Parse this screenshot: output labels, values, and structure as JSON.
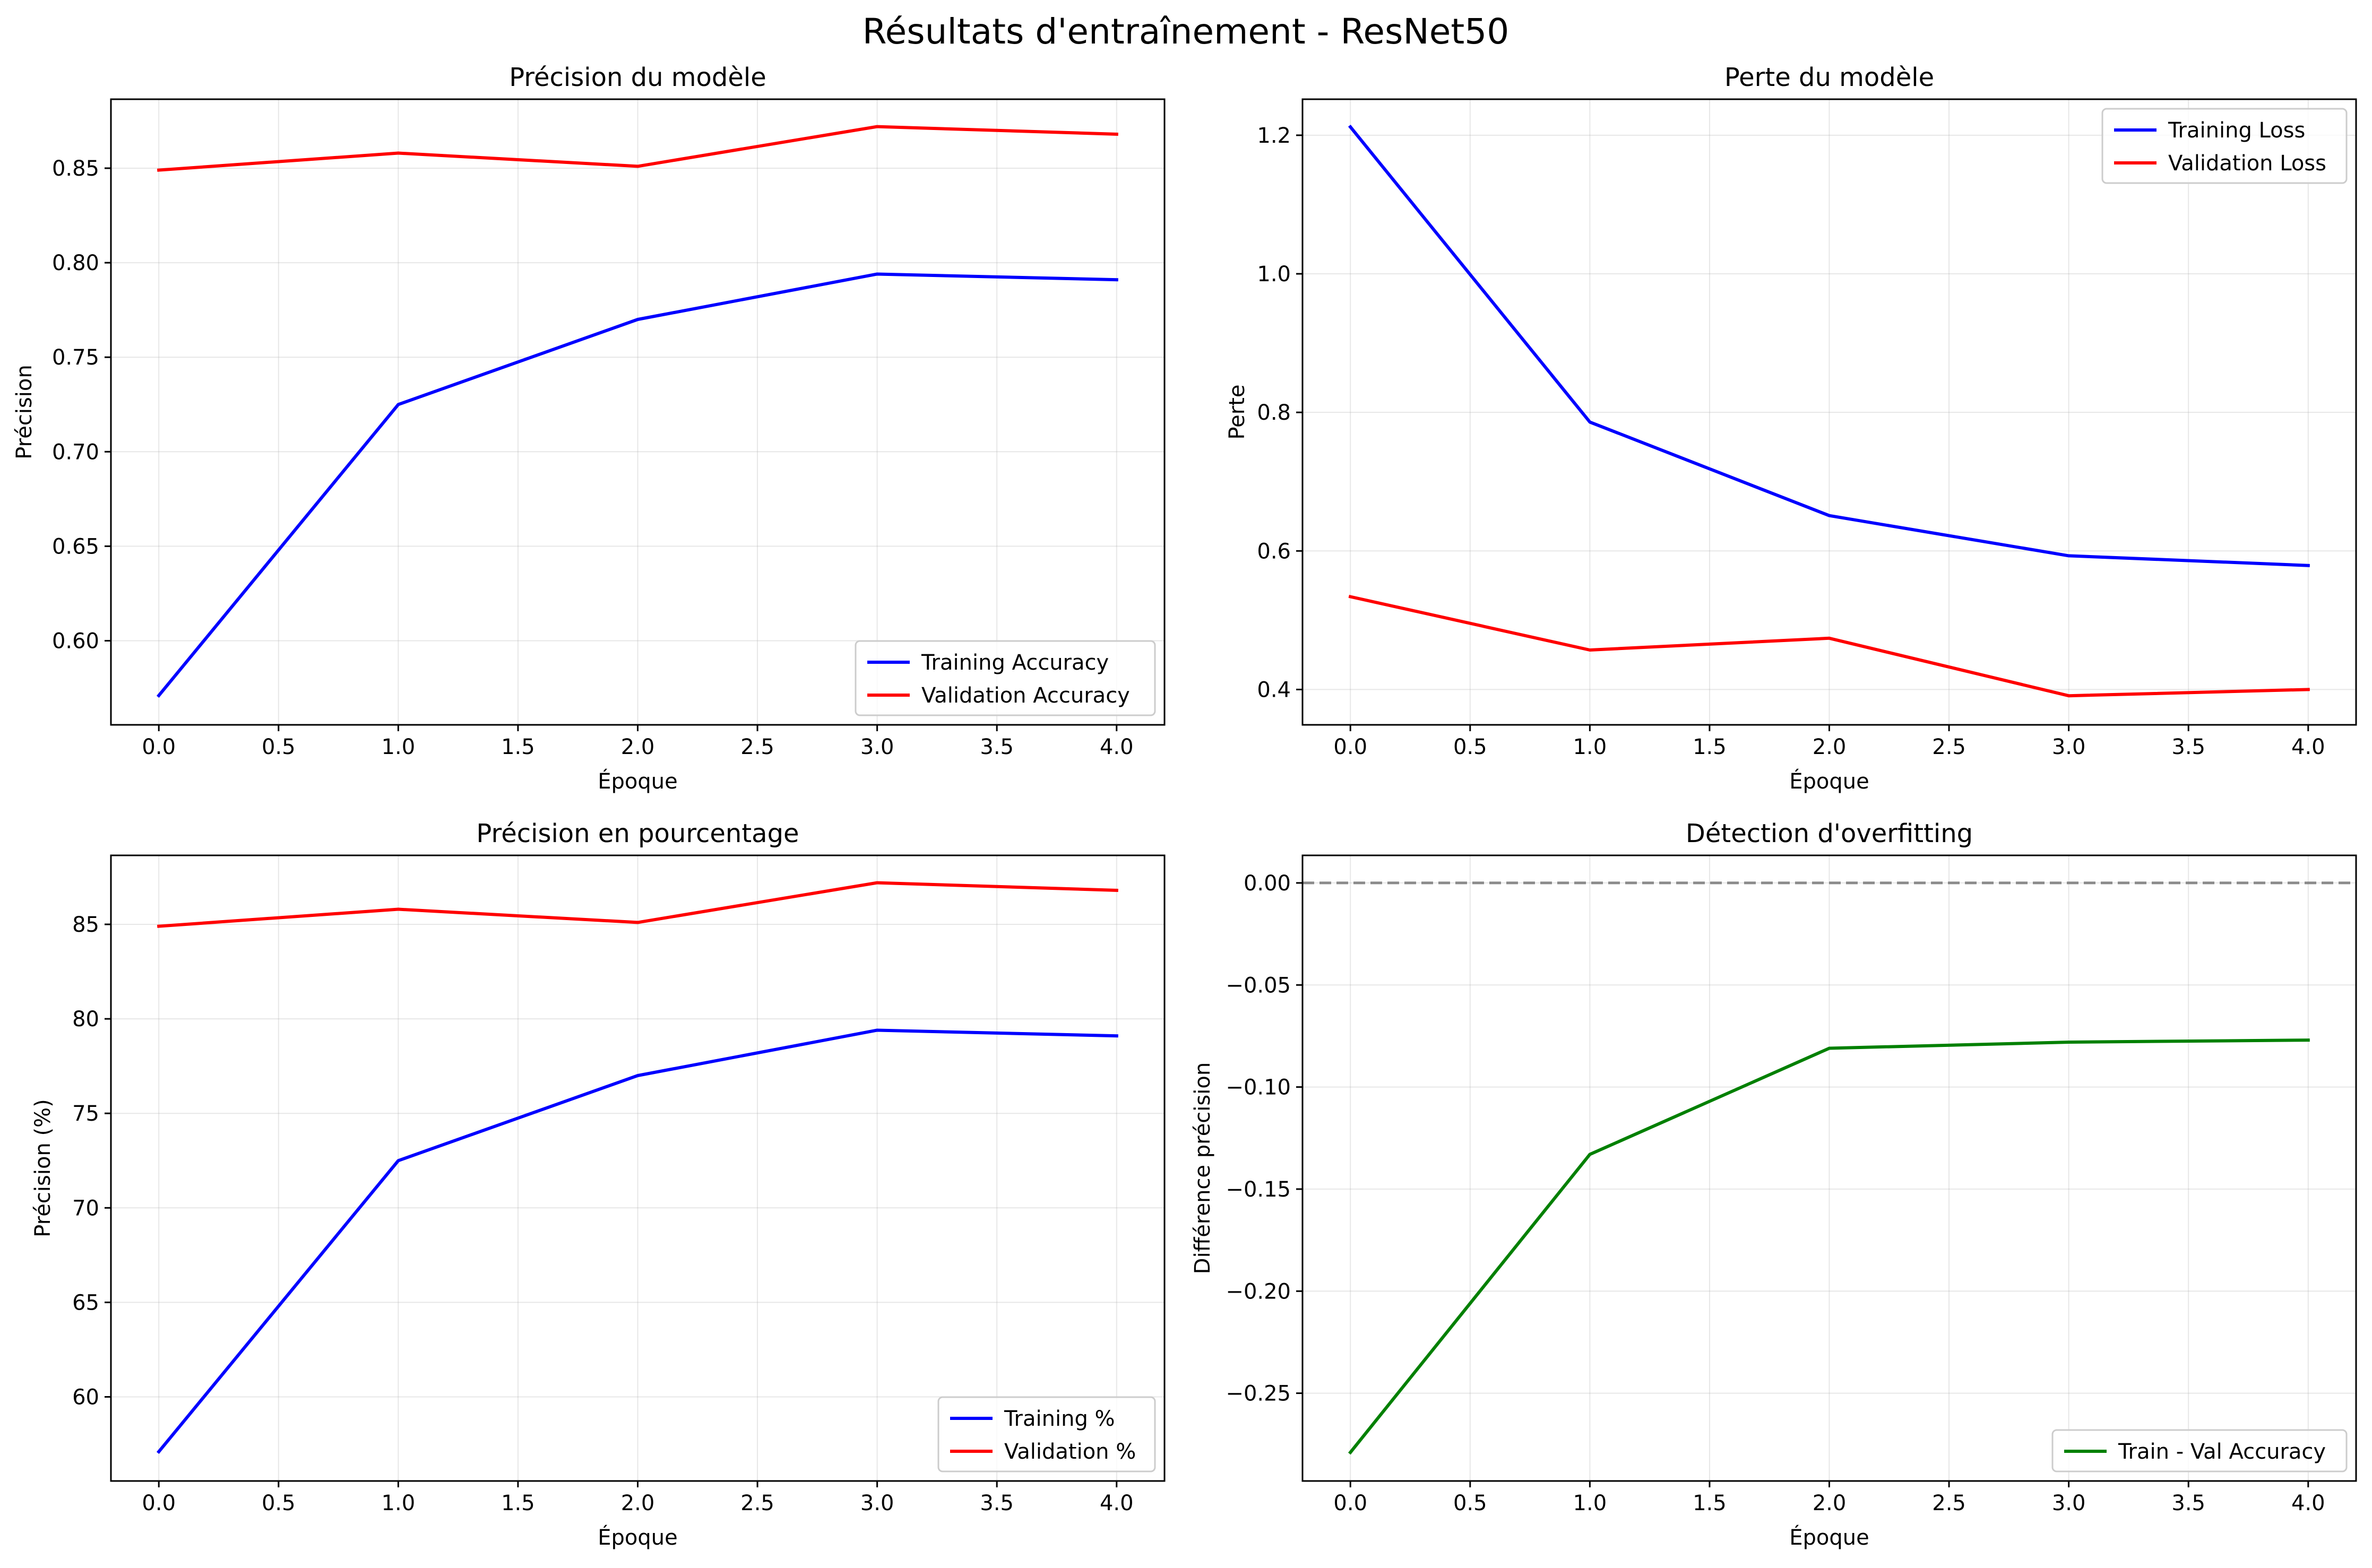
{
  "figure": {
    "suptitle": "Résultats d'entraînement - ResNet50"
  },
  "chart_data": [
    {
      "type": "line",
      "title": "Précision du modèle",
      "xlabel": "Époque",
      "ylabel": "Précision",
      "x": [
        0,
        1,
        2,
        3,
        4
      ],
      "series": [
        {
          "name": "Training Accuracy",
          "color": "#0000ff",
          "values": [
            0.571,
            0.725,
            0.77,
            0.794,
            0.791
          ]
        },
        {
          "name": "Validation Accuracy",
          "color": "#ff0000",
          "values": [
            0.849,
            0.858,
            0.851,
            0.872,
            0.868
          ]
        }
      ],
      "xlim": [
        -0.2,
        4.2
      ],
      "ylim": [
        0.5555,
        0.8865
      ],
      "xticks": [
        0.0,
        0.5,
        1.0,
        1.5,
        2.0,
        2.5,
        3.0,
        3.5,
        4.0
      ],
      "xtick_labels": [
        "0.0",
        "0.5",
        "1.0",
        "1.5",
        "2.0",
        "2.5",
        "3.0",
        "3.5",
        "4.0"
      ],
      "yticks": [
        0.6,
        0.65,
        0.7,
        0.75,
        0.8,
        0.85
      ],
      "ytick_labels": [
        "0.60",
        "0.65",
        "0.70",
        "0.75",
        "0.80",
        "0.85"
      ],
      "grid": true,
      "legend": "lower-right"
    },
    {
      "type": "line",
      "title": "Perte du modèle",
      "xlabel": "Époque",
      "ylabel": "Perte",
      "x": [
        0,
        1,
        2,
        3,
        4
      ],
      "series": [
        {
          "name": "Training Loss",
          "color": "#0000ff",
          "values": [
            1.212,
            0.786,
            0.651,
            0.593,
            0.579
          ]
        },
        {
          "name": "Validation Loss",
          "color": "#ff0000",
          "values": [
            0.534,
            0.457,
            0.474,
            0.391,
            0.4
          ]
        }
      ],
      "xlim": [
        -0.2,
        4.2
      ],
      "ylim": [
        0.349,
        1.252
      ],
      "xticks": [
        0.0,
        0.5,
        1.0,
        1.5,
        2.0,
        2.5,
        3.0,
        3.5,
        4.0
      ],
      "xtick_labels": [
        "0.0",
        "0.5",
        "1.0",
        "1.5",
        "2.0",
        "2.5",
        "3.0",
        "3.5",
        "4.0"
      ],
      "yticks": [
        0.4,
        0.6,
        0.8,
        1.0,
        1.2
      ],
      "ytick_labels": [
        "0.4",
        "0.6",
        "0.8",
        "1.0",
        "1.2"
      ],
      "grid": true,
      "legend": "upper-right"
    },
    {
      "type": "line",
      "title": "Précision en pourcentage",
      "xlabel": "Époque",
      "ylabel": "Précision (%)",
      "x": [
        0,
        1,
        2,
        3,
        4
      ],
      "series": [
        {
          "name": "Training %",
          "color": "#0000ff",
          "values": [
            57.1,
            72.5,
            77.0,
            79.4,
            79.1
          ]
        },
        {
          "name": "Validation %",
          "color": "#ff0000",
          "values": [
            84.9,
            85.8,
            85.1,
            87.2,
            86.8
          ]
        }
      ],
      "xlim": [
        -0.2,
        4.2
      ],
      "ylim": [
        55.55,
        88.65
      ],
      "xticks": [
        0.0,
        0.5,
        1.0,
        1.5,
        2.0,
        2.5,
        3.0,
        3.5,
        4.0
      ],
      "xtick_labels": [
        "0.0",
        "0.5",
        "1.0",
        "1.5",
        "2.0",
        "2.5",
        "3.0",
        "3.5",
        "4.0"
      ],
      "yticks": [
        60,
        65,
        70,
        75,
        80,
        85
      ],
      "ytick_labels": [
        "60",
        "65",
        "70",
        "75",
        "80",
        "85"
      ],
      "grid": true,
      "legend": "lower-right"
    },
    {
      "type": "line",
      "title": "Détection d'overfitting",
      "xlabel": "Époque",
      "ylabel": "Différence précision",
      "x": [
        0,
        1,
        2,
        3,
        4
      ],
      "series": [
        {
          "name": "Train - Val Accuracy",
          "color": "#008000",
          "values": [
            -0.279,
            -0.133,
            -0.081,
            -0.078,
            -0.077
          ]
        }
      ],
      "reference_line": {
        "y": 0.0,
        "color": "#808080",
        "style": "dashed"
      },
      "xlim": [
        -0.2,
        4.2
      ],
      "ylim": [
        -0.293,
        0.0135
      ],
      "xticks": [
        0.0,
        0.5,
        1.0,
        1.5,
        2.0,
        2.5,
        3.0,
        3.5,
        4.0
      ],
      "xtick_labels": [
        "0.0",
        "0.5",
        "1.0",
        "1.5",
        "2.0",
        "2.5",
        "3.0",
        "3.5",
        "4.0"
      ],
      "yticks": [
        0.0,
        -0.05,
        -0.1,
        -0.15,
        -0.2,
        -0.25
      ],
      "ytick_labels": [
        "0.00",
        "−0.05",
        "−0.10",
        "−0.15",
        "−0.20",
        "−0.25"
      ],
      "grid": true,
      "legend": "lower-right"
    }
  ]
}
